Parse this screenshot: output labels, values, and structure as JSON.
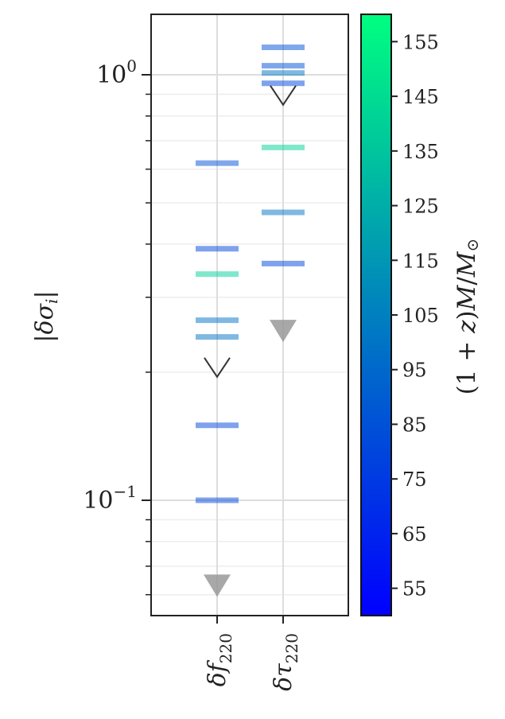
{
  "chart_data": {
    "type": "scatter",
    "ylabel": "|δσ_i|",
    "yscale": "log",
    "ylim": [
      0.0566,
      1.44
    ],
    "y_tick_labels": [
      {
        "value": 1.0,
        "base": "10",
        "exp": "0"
      },
      {
        "value": 0.1,
        "base": "10",
        "exp": "−1"
      }
    ],
    "categories": [
      {
        "key": "df220",
        "sym": "δf",
        "sub": "220"
      },
      {
        "key": "dtau220",
        "sym": "δτ",
        "sub": "220"
      }
    ],
    "grid": true,
    "markers": [
      {
        "category": "df220",
        "y": 0.62,
        "mass": 85
      },
      {
        "category": "df220",
        "y": 0.39,
        "mass": 80
      },
      {
        "category": "df220",
        "y": 0.34,
        "mass": 140
      },
      {
        "category": "df220",
        "y": 0.265,
        "mass": 100
      },
      {
        "category": "df220",
        "y": 0.242,
        "mass": 100
      },
      {
        "category": "df220",
        "y": 0.15,
        "mass": 80
      },
      {
        "category": "df220",
        "y": 0.1,
        "mass": 80
      },
      {
        "category": "dtau220",
        "y": 1.16,
        "mass": 85
      },
      {
        "category": "dtau220",
        "y": 1.05,
        "mass": 85
      },
      {
        "category": "dtau220",
        "y": 1.01,
        "mass": 100
      },
      {
        "category": "dtau220",
        "y": 0.955,
        "mass": 80
      },
      {
        "category": "dtau220",
        "y": 0.675,
        "mass": 140
      },
      {
        "category": "dtau220",
        "y": 0.475,
        "mass": 100
      },
      {
        "category": "dtau220",
        "y": 0.36,
        "mass": 80
      }
    ],
    "upper_limits": [
      {
        "category": "df220",
        "y": 0.195,
        "style": "open"
      },
      {
        "category": "df220",
        "y": 0.063,
        "style": "filled"
      },
      {
        "category": "dtau220",
        "y": 0.85,
        "style": "open"
      },
      {
        "category": "dtau220",
        "y": 0.25,
        "style": "filled"
      }
    ],
    "colorbar": {
      "label": "(1+z)M/M⊙",
      "colormap": "winter",
      "range": [
        50,
        160
      ],
      "ticks": [
        55,
        65,
        75,
        85,
        95,
        105,
        115,
        125,
        135,
        145,
        155
      ],
      "color_low": "#0000ff",
      "color_high": "#00ff80"
    }
  }
}
